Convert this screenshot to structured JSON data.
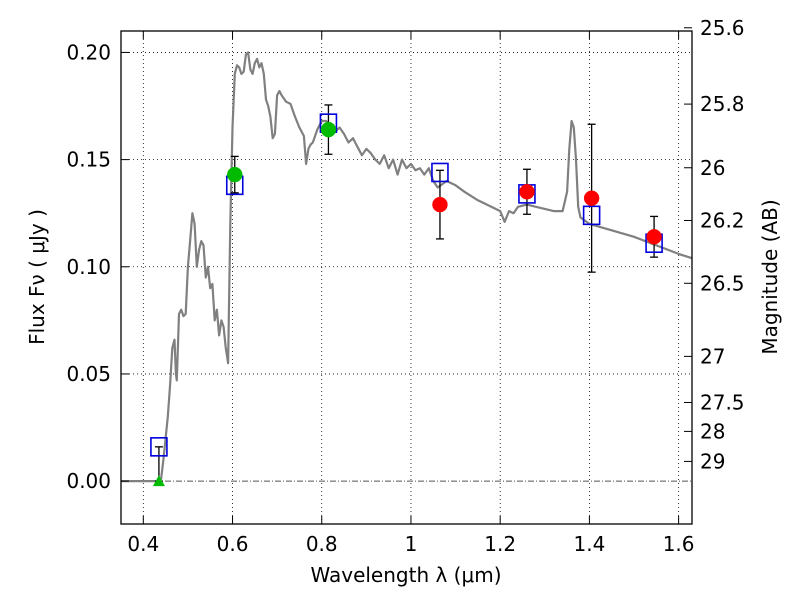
{
  "chart_data": {
    "type": "scatter",
    "xlabel": "Wavelength  λ (μm)",
    "ylabel": "Flux  Fν  ( μJy )",
    "y2label": "Magnitude (AB)",
    "xlim": [
      0.35,
      1.63
    ],
    "ylim": [
      -0.02,
      0.21
    ],
    "x_ticks": [
      0.4,
      0.6,
      0.8,
      1.0,
      1.2,
      1.4,
      1.6
    ],
    "x_tick_labels": [
      "0.4",
      "0.6",
      "0.8",
      "1",
      "1.2",
      "1.4",
      "1.6"
    ],
    "y_ticks": [
      0.0,
      0.05,
      0.1,
      0.15,
      0.2
    ],
    "y_tick_labels": [
      "0.00",
      "0.05",
      "0.10",
      "0.15",
      "0.20"
    ],
    "mag_ticks": [
      {
        "label": "25.6",
        "flux": 0.2115
      },
      {
        "label": "25.8",
        "flux": 0.1759
      },
      {
        "label": "26",
        "flux": 0.1462
      },
      {
        "label": "26.2",
        "flux": 0.1216
      },
      {
        "label": "26.5",
        "flux": 0.0923
      },
      {
        "label": "27",
        "flux": 0.0582
      },
      {
        "label": "27.5",
        "flux": 0.0367
      },
      {
        "label": "28",
        "flux": 0.0232
      },
      {
        "label": "29",
        "flux": 0.0092
      }
    ],
    "grid": true,
    "colors": {
      "model": "#808080",
      "green_points": "#00bb00",
      "red_points": "#ff0000",
      "model_boxes": "#0000dd",
      "error_bars": "#000000",
      "zero_line": "#555555"
    },
    "series": [
      {
        "kind": "model-sed",
        "points": [
          [
            0.35,
            0.0
          ],
          [
            0.43,
            0.0
          ],
          [
            0.44,
            0.001
          ],
          [
            0.445,
            0.01
          ],
          [
            0.45,
            0.02
          ],
          [
            0.455,
            0.03
          ],
          [
            0.46,
            0.045
          ],
          [
            0.465,
            0.062
          ],
          [
            0.47,
            0.066
          ],
          [
            0.473,
            0.05
          ],
          [
            0.475,
            0.047
          ],
          [
            0.48,
            0.078
          ],
          [
            0.485,
            0.08
          ],
          [
            0.49,
            0.077
          ],
          [
            0.495,
            0.078
          ],
          [
            0.5,
            0.1
          ],
          [
            0.505,
            0.112
          ],
          [
            0.51,
            0.125
          ],
          [
            0.515,
            0.12
          ],
          [
            0.52,
            0.1
          ],
          [
            0.525,
            0.108
          ],
          [
            0.53,
            0.112
          ],
          [
            0.535,
            0.11
          ],
          [
            0.54,
            0.095
          ],
          [
            0.545,
            0.1
          ],
          [
            0.55,
            0.09
          ],
          [
            0.555,
            0.092
          ],
          [
            0.56,
            0.075
          ],
          [
            0.565,
            0.08
          ],
          [
            0.57,
            0.068
          ],
          [
            0.575,
            0.075
          ],
          [
            0.58,
            0.072
          ],
          [
            0.585,
            0.062
          ],
          [
            0.59,
            0.055
          ],
          [
            0.595,
            0.12
          ],
          [
            0.6,
            0.165
          ],
          [
            0.605,
            0.19
          ],
          [
            0.61,
            0.194
          ],
          [
            0.615,
            0.193
          ],
          [
            0.62,
            0.19
          ],
          [
            0.625,
            0.191
          ],
          [
            0.63,
            0.199
          ],
          [
            0.635,
            0.2
          ],
          [
            0.64,
            0.192
          ],
          [
            0.645,
            0.19
          ],
          [
            0.65,
            0.195
          ],
          [
            0.655,
            0.197
          ],
          [
            0.66,
            0.193
          ],
          [
            0.665,
            0.195
          ],
          [
            0.67,
            0.19
          ],
          [
            0.675,
            0.178
          ],
          [
            0.68,
            0.175
          ],
          [
            0.685,
            0.17
          ],
          [
            0.69,
            0.16
          ],
          [
            0.695,
            0.162
          ],
          [
            0.7,
            0.18
          ],
          [
            0.705,
            0.182
          ],
          [
            0.71,
            0.18
          ],
          [
            0.72,
            0.177
          ],
          [
            0.73,
            0.176
          ],
          [
            0.74,
            0.17
          ],
          [
            0.75,
            0.165
          ],
          [
            0.76,
            0.161
          ],
          [
            0.765,
            0.148
          ],
          [
            0.77,
            0.155
          ],
          [
            0.775,
            0.157
          ],
          [
            0.78,
            0.158
          ],
          [
            0.79,
            0.164
          ],
          [
            0.8,
            0.168
          ],
          [
            0.81,
            0.168
          ],
          [
            0.82,
            0.166
          ],
          [
            0.83,
            0.163
          ],
          [
            0.84,
            0.165
          ],
          [
            0.85,
            0.162
          ],
          [
            0.86,
            0.158
          ],
          [
            0.87,
            0.16
          ],
          [
            0.88,
            0.156
          ],
          [
            0.89,
            0.152
          ],
          [
            0.9,
            0.155
          ],
          [
            0.91,
            0.153
          ],
          [
            0.92,
            0.15
          ],
          [
            0.93,
            0.148
          ],
          [
            0.94,
            0.152
          ],
          [
            0.95,
            0.146
          ],
          [
            0.96,
            0.15
          ],
          [
            0.97,
            0.143
          ],
          [
            0.98,
            0.15
          ],
          [
            0.99,
            0.146
          ],
          [
            1.0,
            0.148
          ],
          [
            1.01,
            0.145
          ],
          [
            1.02,
            0.146
          ],
          [
            1.03,
            0.143
          ],
          [
            1.04,
            0.146
          ],
          [
            1.05,
            0.14
          ],
          [
            1.06,
            0.137
          ],
          [
            1.08,
            0.14
          ],
          [
            1.1,
            0.138
          ],
          [
            1.12,
            0.135
          ],
          [
            1.15,
            0.131
          ],
          [
            1.18,
            0.128
          ],
          [
            1.2,
            0.126
          ],
          [
            1.21,
            0.121
          ],
          [
            1.22,
            0.126
          ],
          [
            1.23,
            0.125
          ],
          [
            1.24,
            0.128
          ],
          [
            1.26,
            0.129
          ],
          [
            1.28,
            0.128
          ],
          [
            1.3,
            0.127
          ],
          [
            1.32,
            0.126
          ],
          [
            1.34,
            0.126
          ],
          [
            1.35,
            0.135
          ],
          [
            1.355,
            0.155
          ],
          [
            1.36,
            0.168
          ],
          [
            1.365,
            0.165
          ],
          [
            1.37,
            0.15
          ],
          [
            1.375,
            0.128
          ],
          [
            1.38,
            0.123
          ],
          [
            1.4,
            0.12
          ],
          [
            1.45,
            0.117
          ],
          [
            1.5,
            0.114
          ],
          [
            1.55,
            0.11
          ],
          [
            1.6,
            0.106
          ],
          [
            1.63,
            0.104
          ]
        ]
      },
      {
        "kind": "model-bandpass-flux",
        "marker": "open-square",
        "points": [
          [
            0.435,
            0.016
          ],
          [
            0.605,
            0.138
          ],
          [
            0.815,
            0.167
          ],
          [
            1.065,
            0.144
          ],
          [
            1.26,
            0.134
          ],
          [
            1.405,
            0.124
          ],
          [
            1.545,
            0.111
          ]
        ]
      },
      {
        "kind": "observed-flux",
        "marker": "filled-circle",
        "color": "green",
        "points": [
          [
            0.605,
            0.143,
            0.0085
          ],
          [
            0.815,
            0.164,
            0.0115
          ]
        ]
      },
      {
        "kind": "observed-flux",
        "marker": "filled-circle",
        "color": "red",
        "points": [
          [
            1.065,
            0.129,
            0.016
          ],
          [
            1.26,
            0.135,
            0.0105
          ],
          [
            1.405,
            0.132,
            0.0345
          ],
          [
            1.545,
            0.114,
            0.0095
          ]
        ]
      },
      {
        "kind": "upper-limit",
        "marker": "triangle-up",
        "color": "green",
        "points": [
          [
            0.435,
            0.0
          ]
        ]
      }
    ],
    "extra_error_bars": [
      {
        "x": 0.435,
        "low": 0.0,
        "high": 0.016
      }
    ]
  }
}
